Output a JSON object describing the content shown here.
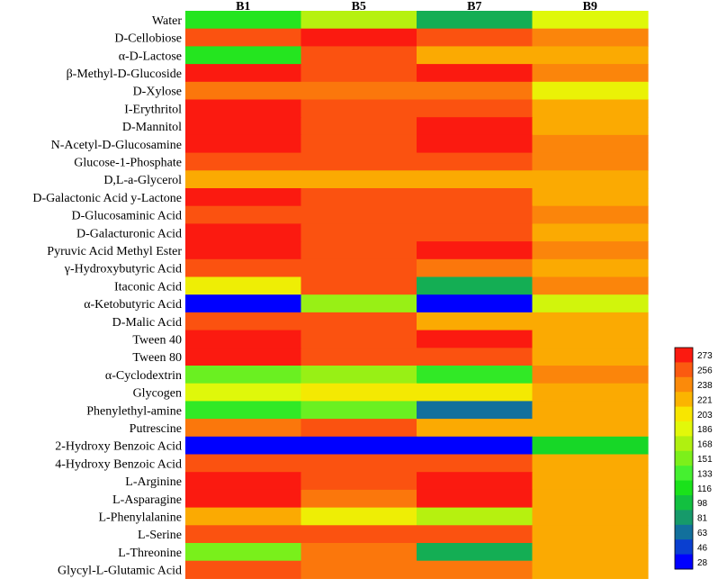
{
  "chart_data": {
    "type": "heatmap",
    "columns": [
      "B1",
      "B5",
      "B7",
      "B9"
    ],
    "rows": [
      "Water",
      "D-Cellobiose",
      "α-D-Lactose",
      "β-Methyl-D-Glucoside",
      "D-Xylose",
      "I-Erythritol",
      "D-Mannitol",
      "N-Acetyl-D-Glucosamine",
      "Glucose-1-Phosphate",
      "D,L-a-Glycerol",
      "D-Galactonic Acid y-Lactone",
      "D-Glucosaminic Acid",
      "D-Galacturonic Acid",
      "Pyruvic Acid Methyl Ester",
      "γ-Hydroxybutyric Acid",
      "Itaconic Acid",
      "α-Ketobutyric Acid",
      "D-Malic Acid",
      "Tween 40",
      "Tween 80",
      "α-Cyclodextrin",
      "Glycogen",
      "Phenylethyl-amine",
      "Putrescine",
      "2-Hydroxy Benzoic Acid",
      "4-Hydroxy Benzoic Acid",
      "L-Arginine",
      "L-Asparagine",
      "L-Phenylalanine",
      "L-Serine",
      "L-Threonine",
      "Glycyl-L-Glutamic Acid"
    ],
    "values": [
      [
        120,
        170,
        90,
        185
      ],
      [
        258,
        273,
        258,
        240
      ],
      [
        120,
        258,
        225,
        225
      ],
      [
        273,
        258,
        273,
        240
      ],
      [
        245,
        245,
        245,
        192
      ],
      [
        273,
        258,
        258,
        225
      ],
      [
        273,
        258,
        273,
        225
      ],
      [
        273,
        258,
        273,
        240
      ],
      [
        258,
        258,
        258,
        240
      ],
      [
        225,
        225,
        225,
        225
      ],
      [
        273,
        258,
        258,
        225
      ],
      [
        258,
        258,
        258,
        240
      ],
      [
        273,
        258,
        258,
        225
      ],
      [
        273,
        258,
        273,
        240
      ],
      [
        258,
        258,
        245,
        225
      ],
      [
        195,
        258,
        90,
        240
      ],
      [
        28,
        160,
        28,
        180
      ],
      [
        258,
        258,
        225,
        225
      ],
      [
        273,
        258,
        273,
        225
      ],
      [
        273,
        258,
        258,
        225
      ],
      [
        145,
        160,
        125,
        240
      ],
      [
        185,
        200,
        200,
        225
      ],
      [
        125,
        145,
        63,
        225
      ],
      [
        245,
        258,
        225,
        225
      ],
      [
        28,
        28,
        28,
        110
      ],
      [
        258,
        258,
        258,
        225
      ],
      [
        273,
        258,
        273,
        225
      ],
      [
        273,
        245,
        273,
        225
      ],
      [
        225,
        195,
        170,
        225
      ],
      [
        258,
        258,
        258,
        225
      ],
      [
        150,
        245,
        90,
        225
      ],
      [
        258,
        245,
        245,
        225
      ]
    ],
    "scale": {
      "min": 28,
      "max": 273,
      "ticks": [
        273,
        256,
        238,
        221,
        203,
        186,
        168,
        151,
        133,
        116,
        98,
        81,
        63,
        46,
        28
      ],
      "stops": [
        {
          "v": 28,
          "color": "#0000ff"
        },
        {
          "v": 46,
          "color": "#0a3fd0"
        },
        {
          "v": 63,
          "color": "#12709c"
        },
        {
          "v": 81,
          "color": "#169a6a"
        },
        {
          "v": 98,
          "color": "#12c040"
        },
        {
          "v": 116,
          "color": "#1ae21a"
        },
        {
          "v": 133,
          "color": "#45f030"
        },
        {
          "v": 151,
          "color": "#7cf01a"
        },
        {
          "v": 168,
          "color": "#b0f010"
        },
        {
          "v": 186,
          "color": "#e2f80a"
        },
        {
          "v": 203,
          "color": "#f8e600"
        },
        {
          "v": 221,
          "color": "#fbb400"
        },
        {
          "v": 238,
          "color": "#fb8a0a"
        },
        {
          "v": 256,
          "color": "#fb5a10"
        },
        {
          "v": 273,
          "color": "#fb1a10"
        }
      ]
    },
    "legend_position": "bottom-right"
  }
}
